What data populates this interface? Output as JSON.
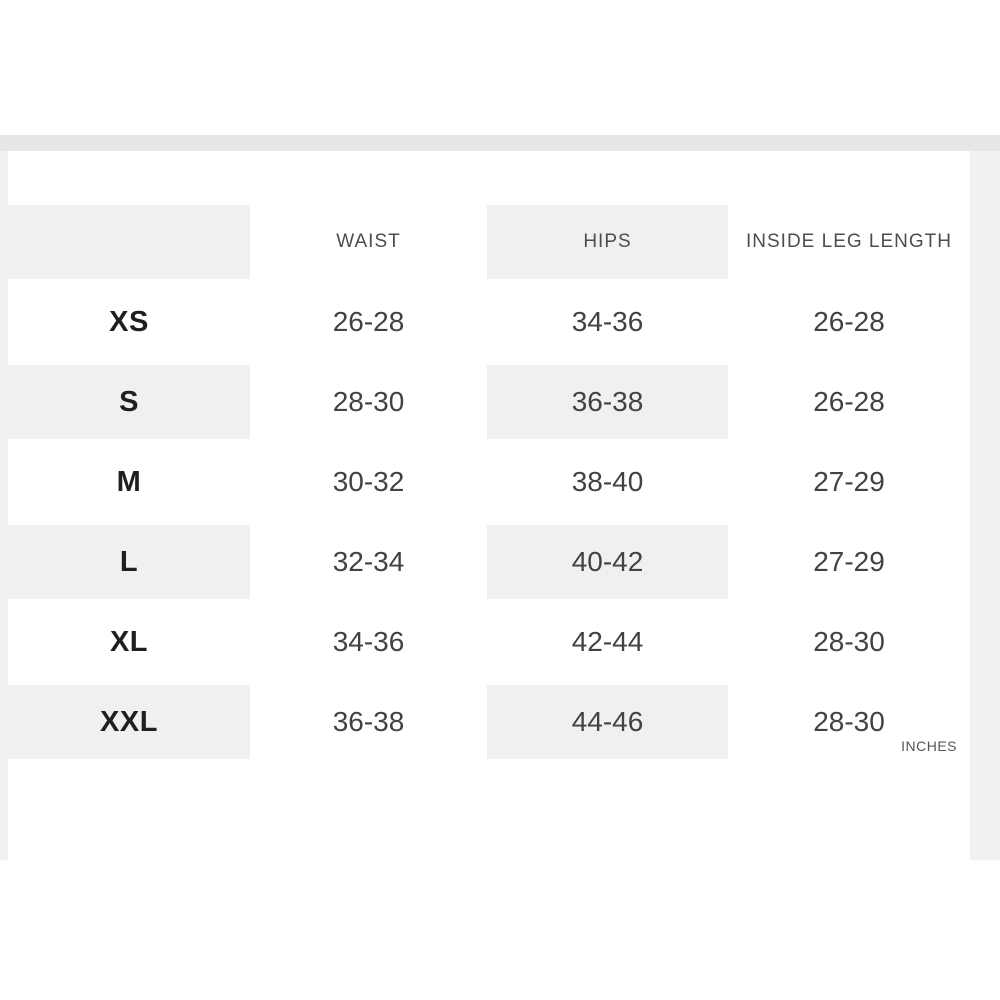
{
  "colors": {
    "page_band_background": "#f1f1f2",
    "top_strip_background": "#e6e7e9",
    "card_background": "#ffffff",
    "shaded_cell_background": "#f0f0ef",
    "size_label_text": "#1f1f1f",
    "value_text": "#424242",
    "header_text": "#4d4d4d"
  },
  "size_chart": {
    "columns": [
      "",
      "WAIST",
      "HIPS",
      "INSIDE LEG LENGTH"
    ],
    "rows": [
      {
        "size": "XS",
        "waist": "26-28",
        "hips": "34-36",
        "inside_leg_length": "26-28"
      },
      {
        "size": "S",
        "waist": "28-30",
        "hips": "36-38",
        "inside_leg_length": "26-28"
      },
      {
        "size": "M",
        "waist": "30-32",
        "hips": "38-40",
        "inside_leg_length": "27-29"
      },
      {
        "size": "L",
        "waist": "32-34",
        "hips": "40-42",
        "inside_leg_length": "27-29"
      },
      {
        "size": "XL",
        "waist": "34-36",
        "hips": "42-44",
        "inside_leg_length": "28-30"
      },
      {
        "size": "XXL",
        "waist": "36-38",
        "hips": "44-46",
        "inside_leg_length": "28-30"
      }
    ],
    "shaded_columns": [
      0,
      2
    ],
    "units_label": "INCHES"
  }
}
